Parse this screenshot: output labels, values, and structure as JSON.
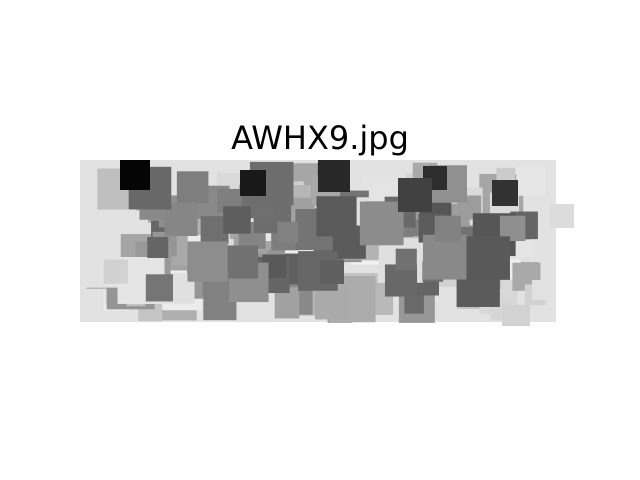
{
  "figure": {
    "title": "AWHX9.jpg",
    "image_description_icon": "grayscale-square-mosaic",
    "colors": {
      "background": "#ffffff",
      "light_tile": "#e6e6e6",
      "dark_tile": "#000000"
    }
  }
}
